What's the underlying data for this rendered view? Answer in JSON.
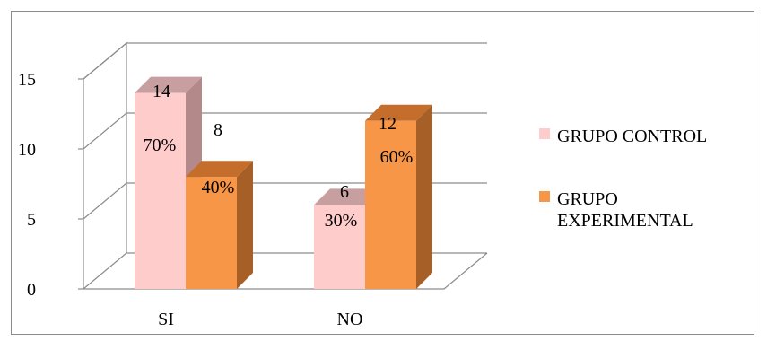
{
  "chart_data": {
    "type": "bar",
    "categories": [
      "SI",
      "NO"
    ],
    "series": [
      {
        "name": "GRUPO CONTROL",
        "values": [
          14,
          6
        ],
        "percent_labels": [
          "70%",
          "30%"
        ],
        "color": "#ffcccc"
      },
      {
        "name": "GRUPO EXPERIMENTAL",
        "values": [
          8,
          12
        ],
        "percent_labels": [
          "40%",
          "60%"
        ],
        "color": "#f79646"
      }
    ],
    "y_ticks": [
      0,
      5,
      10,
      15
    ],
    "ylim": [
      0,
      15
    ],
    "grid": true,
    "legend_position": "right",
    "legend": {
      "control_label": "GRUPO CONTROL",
      "experimental_label": "GRUPO EXPERIMENTAL"
    }
  }
}
